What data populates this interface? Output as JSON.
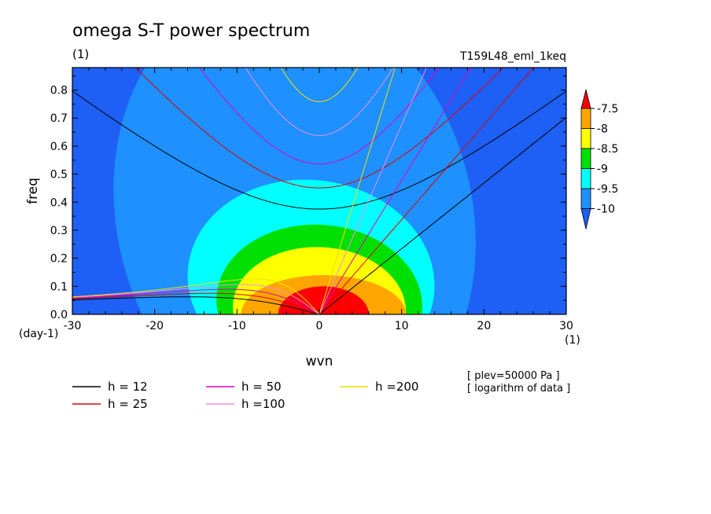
{
  "chart_data": {
    "type": "heatmap",
    "title": "omega S-T power spectrum",
    "units_label": "(1)",
    "run_label": "T159L48_eml_1keq",
    "xlabel": "wvn",
    "ylabel": "freq",
    "x_unit_label": "(1)",
    "y_unit_label": "(day-1)",
    "xlim": [
      -30,
      30
    ],
    "ylim": [
      0,
      0.88
    ],
    "x_ticks": [
      -30,
      -20,
      -10,
      0,
      10,
      20,
      30
    ],
    "x_tick_labels": [
      "-30",
      "-20",
      "-10",
      "0",
      "10",
      "20",
      "30"
    ],
    "y_ticks": [
      0.0,
      0.1,
      0.2,
      0.3,
      0.4,
      0.5,
      0.6,
      0.7,
      0.8
    ],
    "y_tick_labels": [
      "0.0",
      "0.1",
      "0.2",
      "0.3",
      "0.4",
      "0.5",
      "0.6",
      "0.7",
      "0.8"
    ],
    "shading_levels": [
      -10,
      -9.5,
      -9,
      -8.5,
      -8,
      -7.5
    ],
    "colorbar": {
      "labels": [
        "-7.5",
        "-8",
        "-8.5",
        "-9",
        "-9.5",
        "-10"
      ],
      "colors": [
        "#ff0000",
        "#ffa500",
        "#ffff00",
        "#00e000",
        "#00ffff",
        "#1e90ff",
        "#1e5ff5"
      ]
    },
    "annotations": [
      "[ plev=50000 Pa ]",
      "[ logarithm of data ]"
    ],
    "legend": [
      {
        "label": "h = 12",
        "color": "#000000",
        "h": 12
      },
      {
        "label": "h = 25",
        "color": "#e00000",
        "h": 25
      },
      {
        "label": "h = 50",
        "color": "#e000c0",
        "h": 50
      },
      {
        "label": "h =100",
        "color": "#f08cf0",
        "h": 100
      },
      {
        "label": "h =200",
        "color": "#f0e000",
        "h": 200
      }
    ],
    "field": {
      "background_color": "#1e5ff5",
      "blobs": [
        {
          "level": -10,
          "color": "#1e90ff",
          "x0": -3,
          "y0": 0.35,
          "rx": 22,
          "ry": 0.8,
          "tilt": -0.12
        },
        {
          "level": -9.5,
          "color": "#00ffff",
          "x0": -1,
          "y0": 0.12,
          "rx": 15,
          "ry": 0.36,
          "tilt": -0.05
        },
        {
          "level": -9,
          "color": "#00e000",
          "x0": 0,
          "y0": 0.04,
          "rx": 12.5,
          "ry": 0.28,
          "tilt": -0.04
        },
        {
          "level": -8.5,
          "color": "#ffff00",
          "x0": 0,
          "y0": 0.02,
          "rx": 10.5,
          "ry": 0.22,
          "tilt": -0.03
        },
        {
          "level": -8,
          "color": "#ffa500",
          "x0": 0.5,
          "y0": 0.0,
          "rx": 10,
          "ry": 0.14,
          "tilt": 0
        },
        {
          "level": -7.5,
          "color": "#ff0000",
          "x0": 0.5,
          "y0": 0.0,
          "rx": 5.5,
          "ry": 0.1,
          "tilt": 0
        }
      ]
    }
  }
}
